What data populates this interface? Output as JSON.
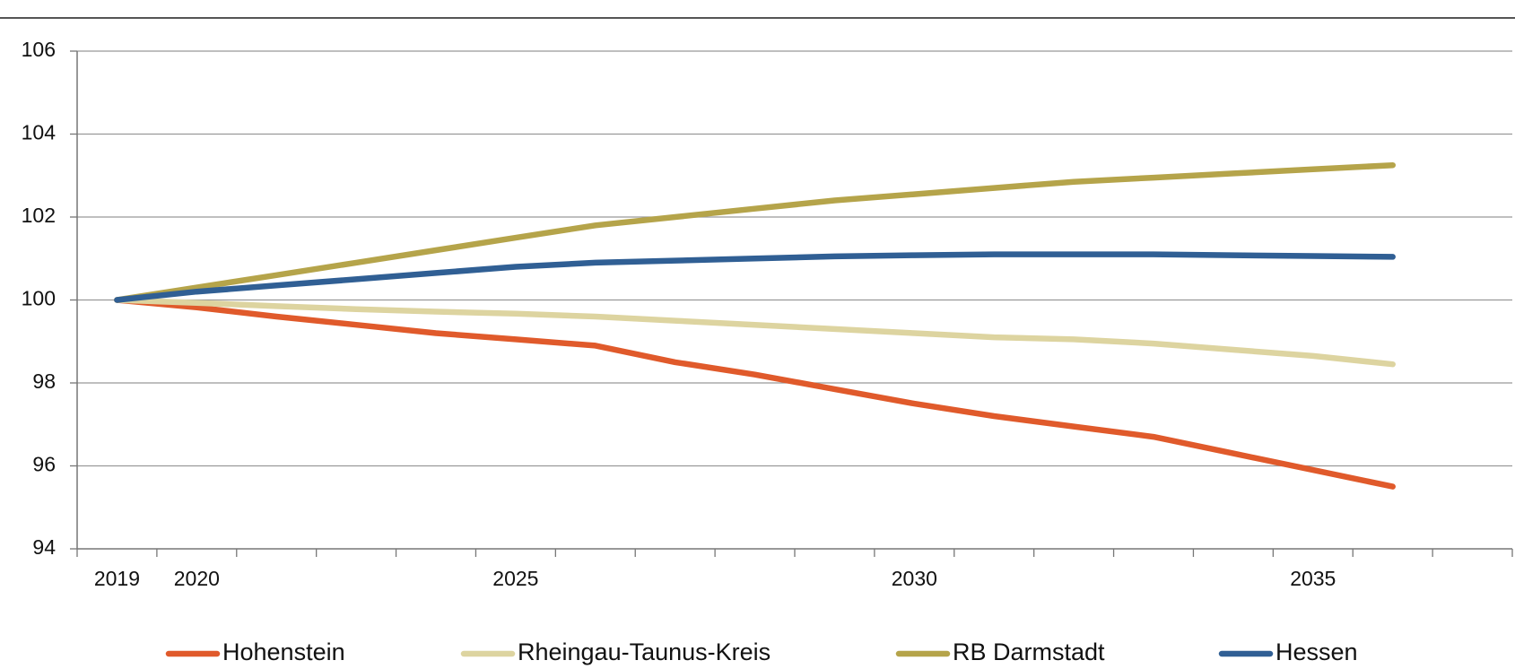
{
  "chart_data": {
    "type": "line",
    "categories": [
      "2019",
      "2020",
      null,
      null,
      null,
      "2025",
      null,
      null,
      null,
      null,
      "2030",
      null,
      null,
      null,
      null,
      "2035",
      null,
      null
    ],
    "series": [
      {
        "name": "Hohenstein",
        "color": "#e05a2b",
        "values": [
          100,
          99.82,
          99.6,
          99.4,
          99.2,
          99.05,
          98.9,
          98.5,
          98.2,
          97.85,
          97.5,
          97.2,
          96.95,
          96.7,
          96.3,
          95.9,
          95.5,
          null
        ]
      },
      {
        "name": "Rheingau-Taunus-Kreis",
        "color": "#ddd4a0",
        "values": [
          100,
          99.93,
          99.85,
          99.78,
          99.72,
          99.67,
          99.6,
          99.5,
          99.4,
          99.3,
          99.2,
          99.1,
          99.05,
          98.95,
          98.8,
          98.65,
          98.45,
          null
        ]
      },
      {
        "name": "RB Darmstadt",
        "color": "#b5a44a",
        "values": [
          100,
          100.3,
          100.6,
          100.9,
          101.2,
          101.5,
          101.8,
          102.0,
          102.2,
          102.4,
          102.55,
          102.7,
          102.85,
          102.95,
          103.05,
          103.15,
          103.25,
          null
        ]
      },
      {
        "name": "Hessen",
        "color": "#305f94",
        "values": [
          100,
          100.2,
          100.35,
          100.5,
          100.65,
          100.8,
          100.9,
          100.95,
          101.0,
          101.05,
          101.08,
          101.1,
          101.1,
          101.1,
          101.08,
          101.06,
          101.04,
          null
        ]
      }
    ],
    "ylim": [
      94,
      106
    ],
    "yticks": [
      94,
      96,
      98,
      100,
      102,
      104,
      106
    ],
    "grid": true,
    "legend": "bottom"
  }
}
